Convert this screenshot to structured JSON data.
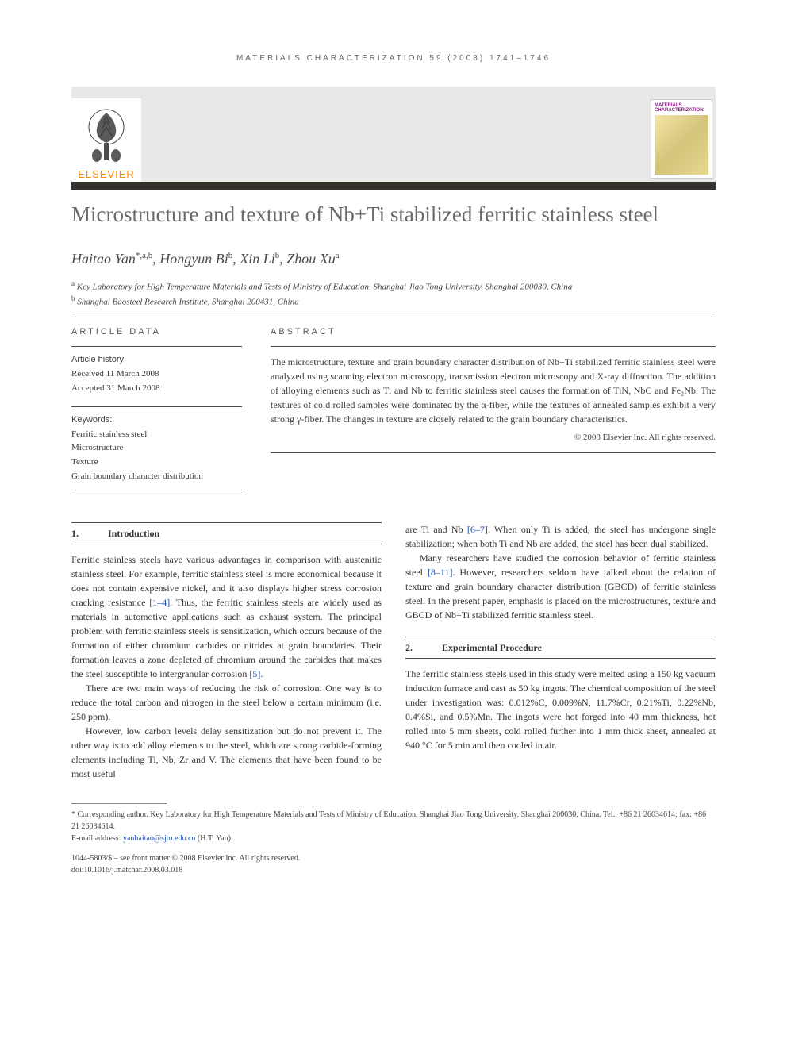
{
  "running_head": "MATERIALS CHARACTERIZATION 59 (2008) 1741–1746",
  "publisher": {
    "name": "ELSEVIER",
    "logo_color": "#ff8a00"
  },
  "journal_cover": {
    "title": "MATERIALS CHARACTERIZATION",
    "title_color": "#8b1a7f"
  },
  "title": "Microstructure and texture of Nb+Ti stabilized ferritic stainless steel",
  "authors_html": "Haitao Yan",
  "authors": [
    {
      "name": "Haitao Yan",
      "marks": "*,a,b"
    },
    {
      "name": "Hongyun Bi",
      "marks": "b"
    },
    {
      "name": "Xin Li",
      "marks": "b"
    },
    {
      "name": "Zhou Xu",
      "marks": "a"
    }
  ],
  "affiliations": [
    {
      "mark": "a",
      "text": "Key Laboratory for High Temperature Materials and Tests of Ministry of Education, Shanghai Jiao Tong University, Shanghai 200030, China"
    },
    {
      "mark": "b",
      "text": "Shanghai Baosteel Research Institute, Shanghai 200431, China"
    }
  ],
  "article_data": {
    "head": "ARTICLE DATA",
    "history_label": "Article history:",
    "received": "Received 11 March 2008",
    "accepted": "Accepted 31 March 2008",
    "keywords_label": "Keywords:",
    "keywords": [
      "Ferritic stainless steel",
      "Microstructure",
      "Texture",
      "Grain boundary character distribution"
    ]
  },
  "abstract": {
    "head": "ABSTRACT",
    "body": "The microstructure, texture and grain boundary character distribution of Nb+Ti stabilized ferritic stainless steel were analyzed using scanning electron microscopy, transmission electron microscopy and X-ray diffraction. The addition of alloying elements such as Ti and Nb to ferritic stainless steel causes the formation of TiN, NbC and Fe₂Nb. The textures of cold rolled samples were dominated by the α-fiber, while the textures of annealed samples exhibit a very strong γ-fiber. The changes in texture are closely related to the grain boundary characteristics.",
    "copyright": "© 2008 Elsevier Inc. All rights reserved."
  },
  "sections": {
    "s1": {
      "num": "1.",
      "title": "Introduction"
    },
    "s2": {
      "num": "2.",
      "title": "Experimental Procedure"
    }
  },
  "body": {
    "p1": "Ferritic stainless steels have various advantages in comparison with austenitic stainless steel. For example, ferritic stainless steel is more economical because it does not contain expensive nickel, and it also displays higher stress corrosion cracking resistance ",
    "p1_ref": "[1–4]",
    "p1b": ". Thus, the ferritic stainless steels are widely used as materials in automotive applications such as exhaust system. The principal problem with ferritic stainless steels is sensitization, which occurs because of the formation of either chromium carbides or nitrides at grain boundaries. Their formation leaves a zone depleted of chromium around the carbides that makes the steel susceptible to intergranular corrosion ",
    "p1_ref2": "[5]",
    "p1c": ".",
    "p2": "There are two main ways of reducing the risk of corrosion. One way is to reduce the total carbon and nitrogen in the steel below a certain minimum (i.e. 250 ppm).",
    "p3": "However, low carbon levels delay sensitization but do not prevent it. The other way is to add alloy elements to the steel, which are strong carbide-forming elements including Ti, Nb, Zr and V. The elements that have been found to be most useful",
    "p4a": "are Ti and Nb ",
    "p4_ref": "[6–7]",
    "p4b": ". When only Ti is added, the steel has undergone single stabilization; when both Ti and Nb are added, the steel has been dual stabilized.",
    "p5a": "Many researchers have studied the corrosion behavior of ferritic stainless steel ",
    "p5_ref": "[8–11]",
    "p5b": ". However, researchers seldom have talked about the relation of texture and grain boundary character distribution (GBCD) of ferritic stainless steel. In the present paper, emphasis is placed on the microstructures, texture and GBCD of Nb+Ti stabilized ferritic stainless steel.",
    "p6": "The ferritic stainless steels used in this study were melted using a 150 kg vacuum induction furnace and cast as 50 kg ingots. The chemical composition of the steel under investigation was: 0.012%C, 0.009%N, 11.7%Cr, 0.21%Ti, 0.22%Nb, 0.4%Si, and 0.5%Mn. The ingots were hot forged into 40 mm thickness, hot rolled into 5 mm sheets, cold rolled further into 1 mm thick sheet, annealed at 940 °C for 5 min and then cooled in air."
  },
  "footnotes": {
    "corresponding": "* Corresponding author. Key Laboratory for High Temperature Materials and Tests of Ministry of Education, Shanghai Jiao Tong University, Shanghai 200030, China. Tel.: +86 21 26034614; fax: +86 21 26034614.",
    "email_label": "E-mail address: ",
    "email": "yanhaitao@sjtu.edu.cn",
    "email_suffix": " (H.T. Yan)."
  },
  "doi": {
    "line1": "1044-5803/$ – see front matter © 2008 Elsevier Inc. All rights reserved.",
    "line2": "doi:10.1016/j.matchar.2008.03.018"
  },
  "colors": {
    "title_gray": "#6a6a6a",
    "rule": "#4a4a4a",
    "bar": "#35322d",
    "link": "#1a4fb3",
    "banner_bg": "#e8e8e8"
  }
}
